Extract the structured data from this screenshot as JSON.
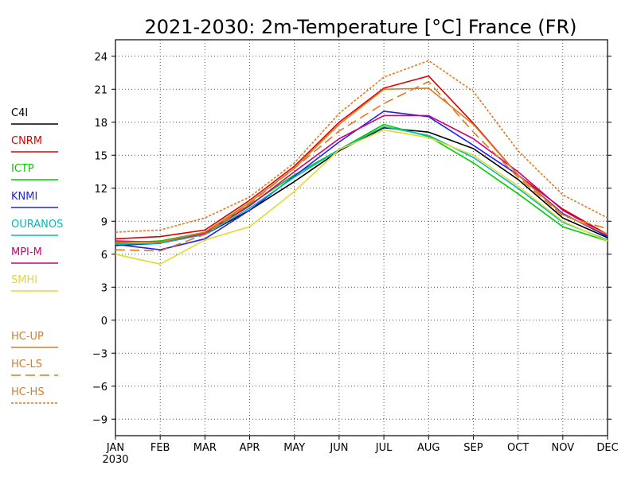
{
  "chart_data": {
    "type": "line",
    "title": "2021-2030: 2m-Temperature [°C] France (FR)",
    "categories": [
      "JAN",
      "FEB",
      "MAR",
      "APR",
      "MAY",
      "JUN",
      "JUL",
      "AUG",
      "SEP",
      "OCT",
      "NOV",
      "DEC"
    ],
    "x_year_label": "2030",
    "ylim": [
      -10.5,
      25.5
    ],
    "yticks": [
      24,
      21,
      18,
      15,
      12,
      9,
      6,
      3,
      0,
      -3,
      -6,
      -9
    ],
    "grid": true,
    "legend_position": "left",
    "series": [
      {
        "name": "C4I",
        "color": "#000000",
        "dash": "solid",
        "values": [
          6.8,
          7.0,
          7.8,
          10.0,
          12.6,
          15.4,
          17.5,
          17.1,
          15.6,
          12.8,
          9.3,
          7.5
        ]
      },
      {
        "name": "CNRM",
        "color": "#dd0000",
        "dash": "solid",
        "values": [
          7.4,
          7.6,
          8.2,
          10.9,
          14.0,
          18.0,
          21.1,
          22.2,
          17.9,
          13.2,
          10.1,
          7.8
        ]
      },
      {
        "name": "ICTP",
        "color": "#00cc00",
        "dash": "solid",
        "values": [
          7.0,
          7.2,
          8.0,
          10.5,
          13.2,
          15.5,
          17.8,
          16.7,
          14.3,
          11.5,
          8.5,
          7.2
        ]
      },
      {
        "name": "KNMI",
        "color": "#2222ee",
        "dash": "solid",
        "values": [
          6.9,
          6.4,
          7.4,
          10.0,
          13.1,
          16.2,
          19.0,
          18.5,
          15.9,
          13.2,
          9.7,
          7.6
        ]
      },
      {
        "name": "OURANOS",
        "color": "#00bbbb",
        "dash": "solid",
        "values": [
          6.9,
          7.0,
          7.8,
          10.2,
          13.0,
          15.5,
          17.6,
          16.8,
          14.8,
          12.0,
          8.9,
          7.3
        ]
      },
      {
        "name": "MPI-M",
        "color": "#cc0077",
        "dash": "solid",
        "values": [
          7.2,
          7.1,
          7.9,
          10.4,
          13.5,
          16.5,
          18.6,
          18.6,
          16.5,
          13.5,
          10.0,
          7.7
        ]
      },
      {
        "name": "SMHI",
        "color": "#e6d830",
        "dash": "solid",
        "values": [
          6.0,
          5.1,
          7.3,
          8.5,
          11.7,
          15.5,
          17.3,
          16.6,
          15.0,
          12.2,
          9.0,
          7.2
        ]
      },
      {
        "name": "HC-UP",
        "color": "#e07a20",
        "dash": "solid",
        "values": [
          7.1,
          7.1,
          8.0,
          10.7,
          13.8,
          17.8,
          21.0,
          21.1,
          17.8,
          13.2,
          9.6,
          7.8
        ]
      },
      {
        "name": "HC-LS",
        "color": "#e07a20",
        "dash": "long-dash",
        "values": [
          6.4,
          6.3,
          7.8,
          10.6,
          13.8,
          17.2,
          19.7,
          21.7,
          17.1,
          13.0,
          9.5,
          8.3
        ]
      },
      {
        "name": "HC-HS",
        "color": "#e07a20",
        "dash": "short-dash",
        "values": [
          8.0,
          8.2,
          9.3,
          11.2,
          14.3,
          18.8,
          22.1,
          23.6,
          20.8,
          15.4,
          11.4,
          9.3
        ]
      }
    ]
  }
}
